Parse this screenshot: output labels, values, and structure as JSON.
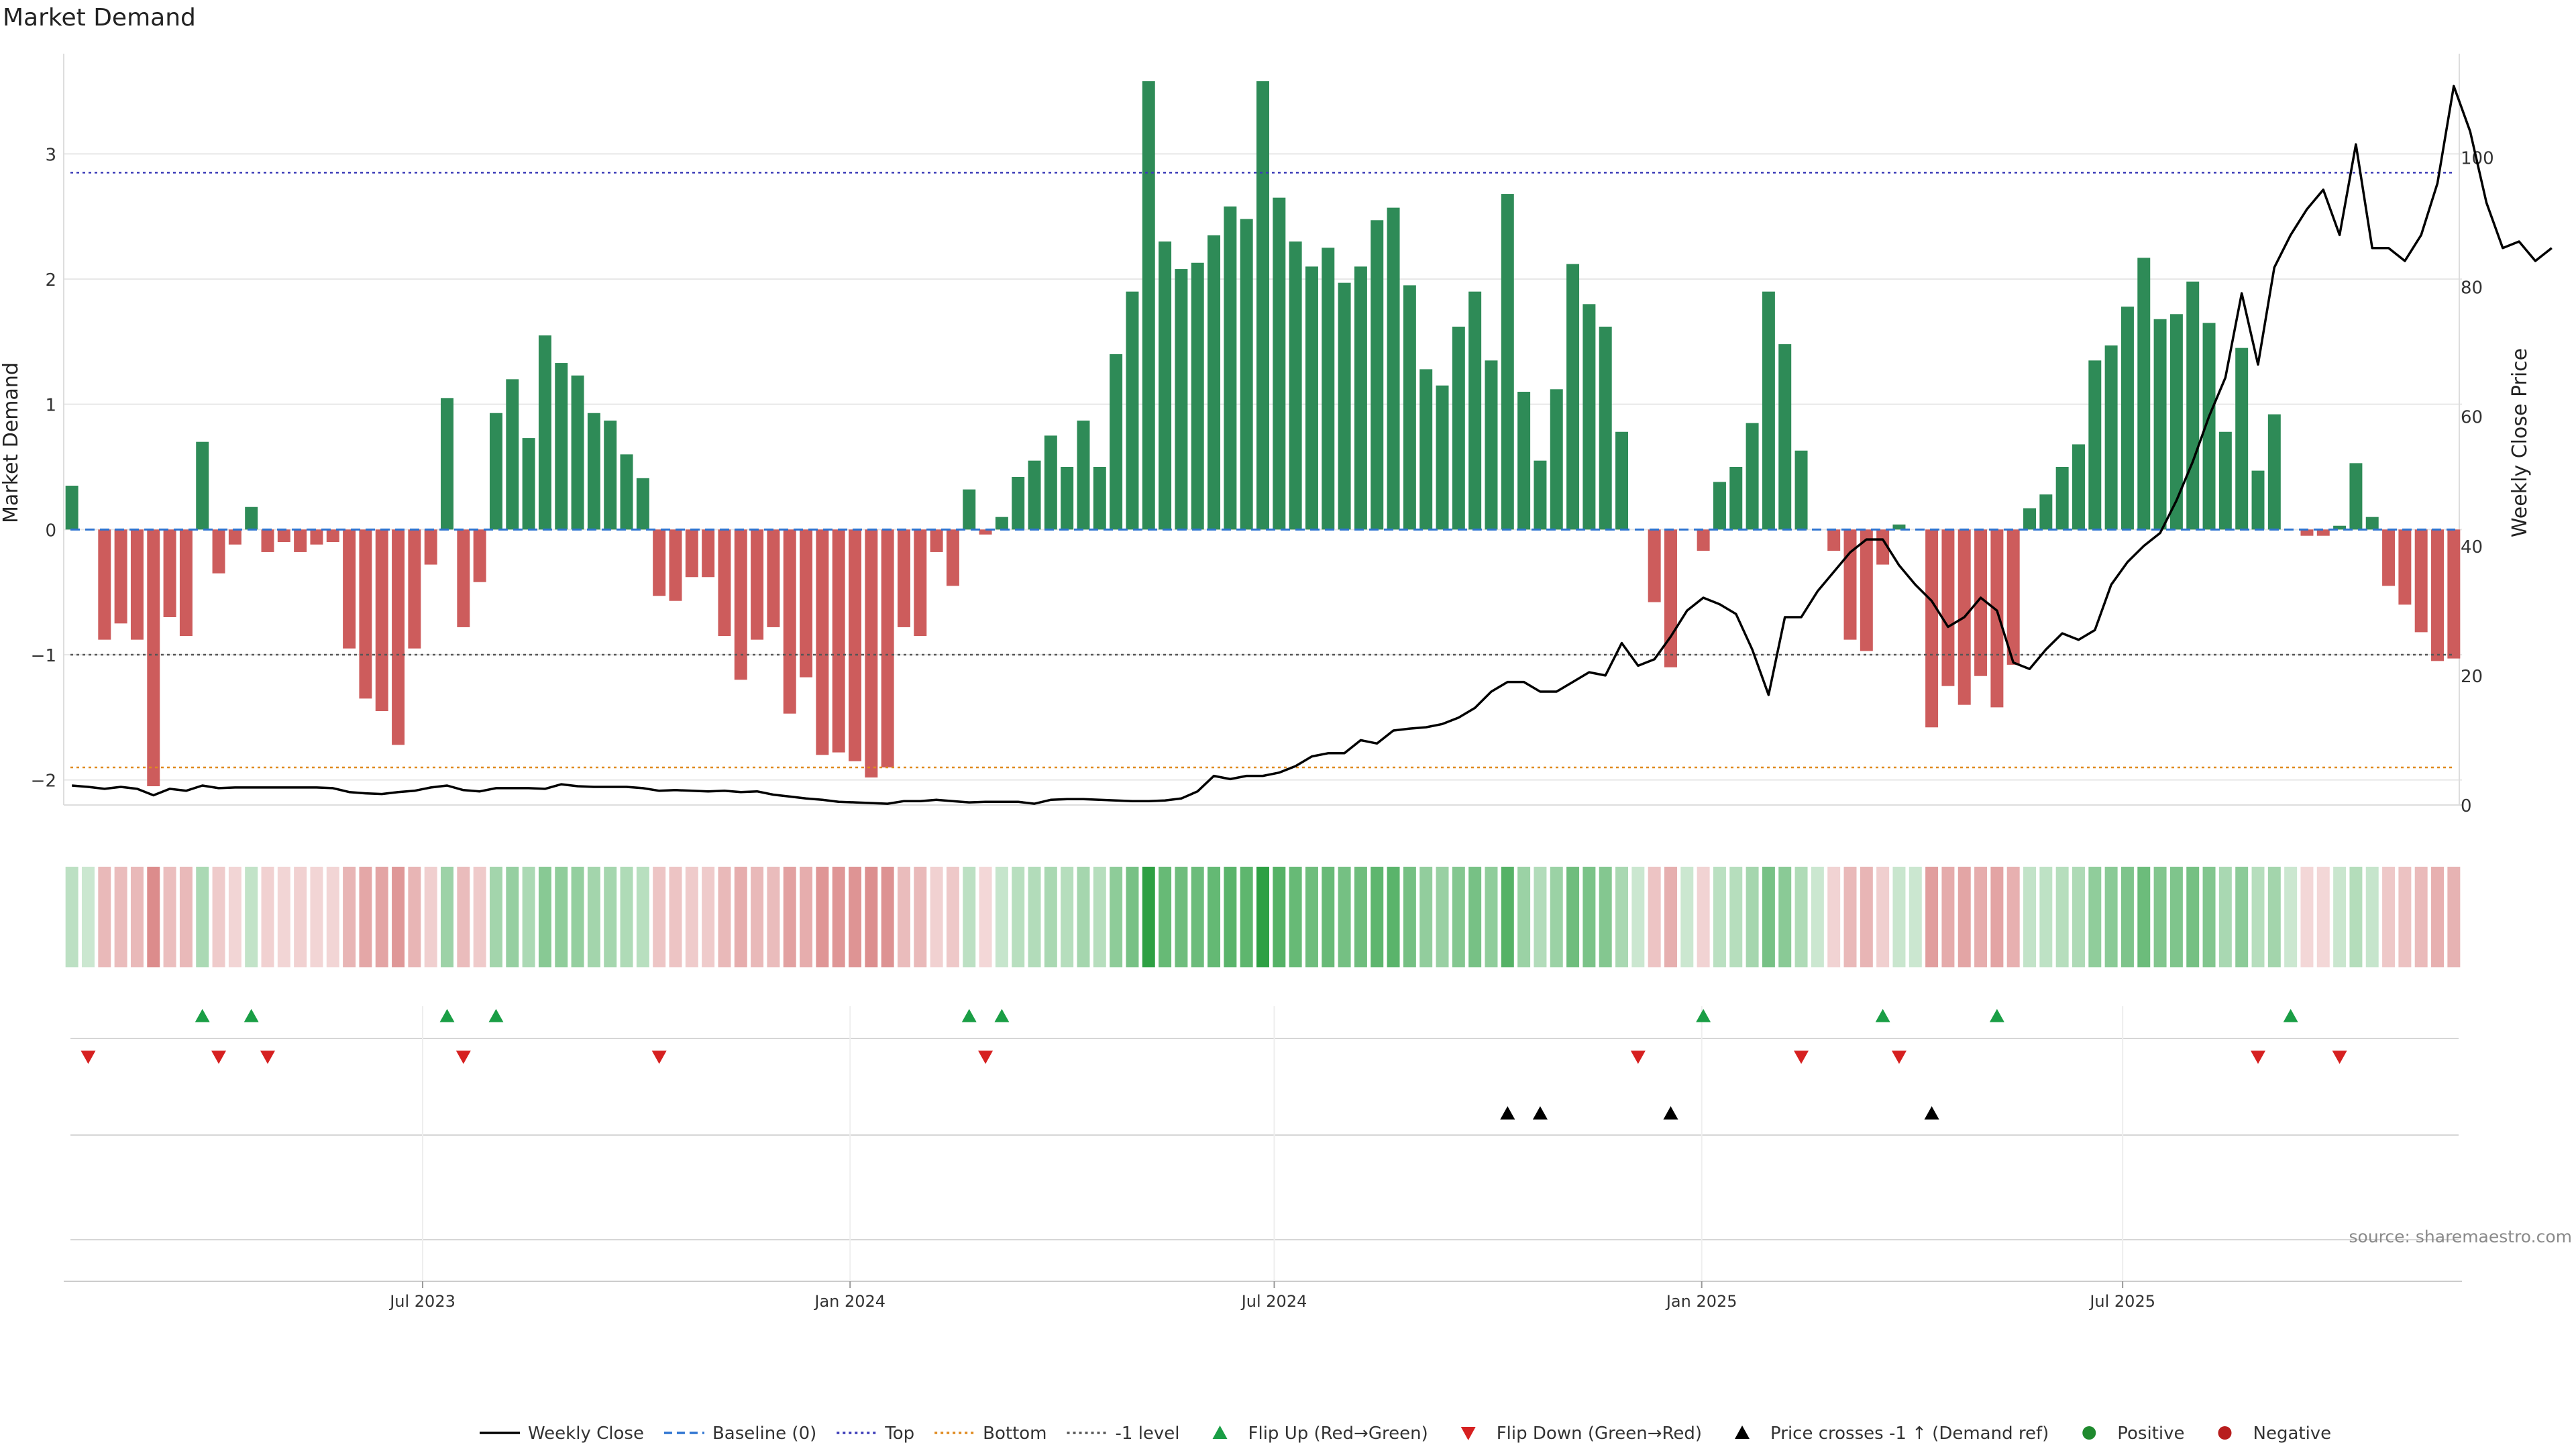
{
  "chart_data": {
    "type": "bar",
    "title": "Market Demand",
    "ylabel": "Market Demand",
    "y2label": "Weekly Close Price",
    "ylim": [
      -2.2,
      3.8
    ],
    "y2lim": [
      0,
      116
    ],
    "yticks": [
      -2,
      -1,
      0,
      1,
      2,
      3
    ],
    "y2ticks": [
      0,
      20,
      40,
      60,
      80,
      100
    ],
    "start_week": 0,
    "x_ticks": [
      {
        "label": "Jul 2023",
        "week": 21.5
      },
      {
        "label": "Jan 2024",
        "week": 47.7
      },
      {
        "label": "Jul 2024",
        "week": 73.7
      },
      {
        "label": "Jan 2025",
        "week": 99.9
      },
      {
        "label": "Jul 2025",
        "week": 125.7
      }
    ],
    "reference_lines": {
      "top": 2.85,
      "bottom": -1.9,
      "minus_one": -1.0,
      "baseline": 0
    },
    "demand": [
      0.35,
      0,
      -0.88,
      -0.75,
      -0.88,
      -2.05,
      -0.7,
      -0.85,
      0.7,
      -0.35,
      -0.12,
      0.18,
      -0.18,
      -0.1,
      -0.18,
      -0.12,
      -0.1,
      -0.95,
      -1.35,
      -1.45,
      -1.72,
      -0.95,
      -0.28,
      1.05,
      -0.78,
      -0.42,
      0.93,
      1.2,
      0.73,
      1.55,
      1.33,
      1.23,
      0.93,
      0.87,
      0.6,
      0.41,
      -0.53,
      -0.57,
      -0.38,
      -0.38,
      -0.85,
      -1.2,
      -0.88,
      -0.78,
      -1.47,
      -1.18,
      -1.8,
      -1.78,
      -1.85,
      -1.98,
      -1.9,
      -0.78,
      -0.85,
      -0.18,
      -0.45,
      0.32,
      -0.04,
      0.1,
      0.42,
      0.55,
      0.75,
      0.5,
      0.87,
      0.5,
      1.4,
      1.9,
      3.58,
      2.3,
      2.08,
      2.13,
      2.35,
      2.58,
      2.48,
      3.58,
      2.65,
      2.3,
      2.1,
      2.25,
      1.97,
      2.1,
      2.47,
      2.57,
      1.95,
      1.28,
      1.15,
      1.62,
      1.9,
      1.35,
      2.68,
      1.1,
      0.55,
      1.12,
      2.12,
      1.8,
      1.62,
      0.78,
      0,
      -0.58,
      -1.1,
      0,
      -0.17,
      0.38,
      0.5,
      0.85,
      1.9,
      1.48,
      0.63,
      0,
      -0.17,
      -0.88,
      -0.97,
      -0.28,
      0.04,
      0,
      -1.58,
      -1.25,
      -1.4,
      -1.17,
      -1.42,
      -1.08,
      0.17,
      0.28,
      0.5,
      0.68,
      1.35,
      1.47,
      1.78,
      2.17,
      1.68,
      1.72,
      1.98,
      1.65,
      0.78,
      1.45,
      0.47,
      0.92,
      0,
      -0.05,
      -0.05,
      0.03,
      0.53,
      0.1,
      -0.45,
      -0.6,
      -0.82,
      -1.05,
      -1.03
    ],
    "weekly_close": [
      3.0,
      2.8,
      2.5,
      2.8,
      2.5,
      1.5,
      2.5,
      2.2,
      3.0,
      2.6,
      2.7,
      2.7,
      2.7,
      2.7,
      2.7,
      2.7,
      2.6,
      2.0,
      1.8,
      1.7,
      2.0,
      2.2,
      2.7,
      3.0,
      2.3,
      2.1,
      2.6,
      2.6,
      2.6,
      2.5,
      3.2,
      2.9,
      2.8,
      2.8,
      2.8,
      2.6,
      2.2,
      2.3,
      2.2,
      2.1,
      2.2,
      2.0,
      2.1,
      1.6,
      1.3,
      1.0,
      0.8,
      0.5,
      0.4,
      0.3,
      0.2,
      0.6,
      0.6,
      0.8,
      0.6,
      0.4,
      0.5,
      0.5,
      0.5,
      0.2,
      0.8,
      0.9,
      0.9,
      0.8,
      0.7,
      0.6,
      0.6,
      0.7,
      1.0,
      2.1,
      4.5,
      4.0,
      4.5,
      4.5,
      5.0,
      6.0,
      7.5,
      8.0,
      8.0,
      10.0,
      9.5,
      11.5,
      11.8,
      12.0,
      12.5,
      13.5,
      15.0,
      17.5,
      19.0,
      19.0,
      17.5,
      17.5,
      19.0,
      20.5,
      20.0,
      25.0,
      21.5,
      22.5,
      26.0,
      30.0,
      32.0,
      31.0,
      29.5,
      24.0,
      17.0,
      29.0,
      29.0,
      33.0,
      36.0,
      39.0,
      41.0,
      41.0,
      37.0,
      34.0,
      31.5,
      27.5,
      29.0,
      32.0,
      30.0,
      22.0,
      21.0,
      24.0,
      26.5,
      25.5,
      27.0,
      34.0,
      37.5,
      40.0,
      42.0,
      47.0,
      53.0,
      60.0,
      66.0,
      79.0,
      68.0,
      83.0,
      88.0,
      92.0,
      95.0,
      88.0,
      102.0,
      86.0,
      86.0,
      84.0,
      88.0,
      96.0,
      111.0,
      104.0,
      93.0,
      86.0,
      87.0,
      84.0,
      86.0
    ],
    "flip_up_weeks": [
      8,
      11,
      23,
      26,
      55,
      57,
      100,
      111,
      118,
      136
    ],
    "flip_down_weeks": [
      1,
      9,
      12,
      24,
      36,
      56,
      96,
      106,
      112,
      134,
      139
    ],
    "price_cross_weeks": [
      88,
      90,
      98,
      114
    ],
    "strip_panel_order": [
      "Flip Up (Red→Green)",
      "Flip Down (Green→Red)",
      "Price crosses -1 ↑ (Demand ref)",
      "Positive / Negative"
    ]
  },
  "legend": [
    {
      "label": "Weekly Close",
      "kind": "line-solid",
      "color": "#000000"
    },
    {
      "label": "Baseline (0)",
      "kind": "line-dashed",
      "color": "#2e74d1"
    },
    {
      "label": "Top",
      "kind": "line-dotted",
      "color": "#3b3bb8"
    },
    {
      "label": "Bottom",
      "kind": "line-dotted",
      "color": "#e08a1e"
    },
    {
      "label": "-1 level",
      "kind": "line-dotted",
      "color": "#555555"
    },
    {
      "label": "Flip Up (Red→Green)",
      "kind": "triangle-up",
      "color": "#1a9e45"
    },
    {
      "label": "Flip Down (Green→Red)",
      "kind": "triangle-down",
      "color": "#d62020"
    },
    {
      "label": "Price crosses -1 ↑ (Demand ref)",
      "kind": "triangle-up",
      "color": "#000000"
    },
    {
      "label": "Positive",
      "kind": "dot",
      "color": "#1f8a2e"
    },
    {
      "label": "Negative",
      "kind": "dot",
      "color": "#b81e1e"
    }
  ],
  "source": "source: sharemaestro.com",
  "colors": {
    "positive_bar": "#2e8b57",
    "negative_bar": "#cd5c5c",
    "grid": "#e8e8e8"
  }
}
